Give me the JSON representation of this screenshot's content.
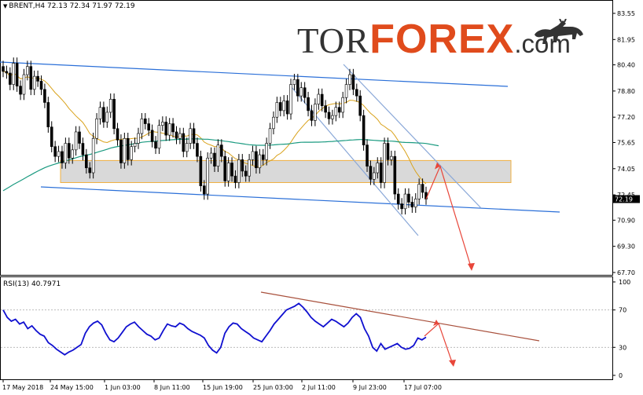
{
  "header": {
    "symbol": "BRENT,H4",
    "ohlc": "72.13 72.34 71.97 72.19"
  },
  "logo": {
    "tor": "TOR",
    "forex": "FOREX",
    "com": ".com"
  },
  "rsi": {
    "label": "RSI(13) 40.7971"
  },
  "chart_data": [
    {
      "type": "candlestick",
      "title": "BRENT,H4",
      "ohlc_label": "72.13 72.34 71.97 72.19",
      "current_price": "72.19",
      "ylim": [
        67.7,
        83.55
      ],
      "y_ticks": [
        "83.55",
        "81.95",
        "80.40",
        "78.80",
        "77.20",
        "75.65",
        "74.05",
        "72.45",
        "70.90",
        "69.30",
        "67.70"
      ],
      "x_ticks": [
        "17 May 2018",
        "24 May 15:00",
        "1 Jun 03:00",
        "8 Jun 11:00",
        "15 Jun 19:00",
        "25 Jun 03:00",
        "2 Jul 11:00",
        "9 Jul 23:00",
        "17 Jul 07:00"
      ],
      "close_series": [
        80.0,
        79.9,
        79.2,
        80.5,
        79.1,
        78.6,
        79.8,
        80.3,
        78.9,
        79.7,
        79.4,
        78.9,
        78.1,
        76.6,
        75.4,
        74.8,
        75.1,
        74.4,
        75.6,
        74.7,
        75.2,
        76.3,
        75.6,
        74.9,
        74.1,
        73.8,
        75.9,
        77.1,
        77.8,
        76.9,
        77.5,
        78.3,
        76.5,
        75.8,
        74.4,
        75.9,
        74.6,
        75.4,
        75.6,
        76.2,
        77.1,
        76.8,
        76.4,
        75.7,
        75.3,
        76.7,
        76.9,
        76.1,
        76.8,
        76.3,
        75.9,
        76.2,
        75.1,
        75.6,
        76.5,
        75.6,
        74.8,
        73.0,
        72.5,
        74.7,
        75.0,
        74.2,
        75.5,
        74.8,
        73.3,
        74.4,
        73.6,
        73.2,
        74.6,
        73.9,
        73.6,
        74.6,
        75.1,
        74.1,
        74.9,
        74.6,
        75.6,
        76.5,
        77.2,
        78.1,
        77.6,
        78.2,
        77.4,
        79.2,
        79.5,
        78.5,
        79.0,
        78.4,
        77.6,
        77.0,
        78.0,
        78.6,
        77.9,
        77.5,
        77.1,
        77.3,
        77.8,
        77.5,
        78.4,
        79.2,
        79.8,
        78.9,
        78.5,
        77.3,
        75.5,
        74.2,
        73.4,
        73.8,
        74.4,
        73.2,
        75.6,
        74.6,
        74.8,
        72.5,
        71.9,
        71.6,
        72.5,
        72.0,
        71.7,
        72.2,
        73.1,
        72.6,
        72.19
      ],
      "ma_slow_start": 72.7,
      "ma_slow_end": 75.55,
      "resistance_zone": [
        73.2,
        74.55
      ],
      "projection_target": 67.9
    },
    {
      "type": "line",
      "title": "RSI(13) 40.7971",
      "ylim": [
        0,
        100
      ],
      "y_ticks": [
        "100",
        "70",
        "30",
        "0"
      ],
      "levels": [
        70,
        30
      ],
      "values": [
        70,
        62,
        58,
        60,
        55,
        57,
        50,
        53,
        48,
        44,
        42,
        35,
        32,
        28,
        25,
        22,
        25,
        27,
        30,
        33,
        45,
        52,
        56,
        58,
        54,
        45,
        38,
        36,
        40,
        46,
        52,
        55,
        57,
        52,
        48,
        44,
        42,
        38,
        40,
        48,
        55,
        53,
        52,
        56,
        54,
        50,
        47,
        45,
        43,
        40,
        32,
        27,
        24,
        30,
        45,
        52,
        56,
        55,
        50,
        47,
        44,
        40,
        38,
        36,
        42,
        48,
        55,
        60,
        65,
        70,
        72,
        74,
        77,
        73,
        68,
        62,
        58,
        55,
        52,
        56,
        60,
        58,
        55,
        52,
        56,
        62,
        66,
        62,
        50,
        42,
        30,
        26,
        34,
        28,
        30,
        32,
        34,
        30,
        28,
        29,
        32,
        40,
        38,
        40.8
      ]
    }
  ]
}
